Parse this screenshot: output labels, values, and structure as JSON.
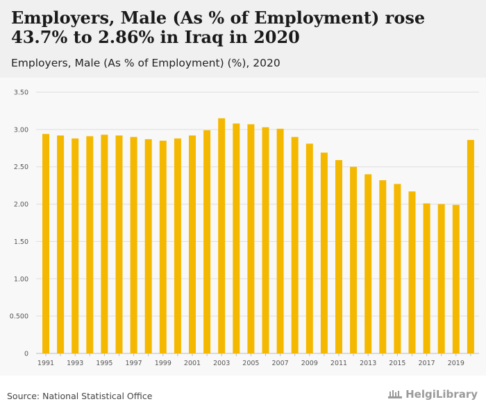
{
  "header": {
    "title": "Employers, Male (As % of Employment) rose 43.7% to 2.86% in Iraq in 2020",
    "subtitle": "Employers, Male (As % of Employment) (%), 2020"
  },
  "footer": {
    "source": "Source: National Statistical Office",
    "brand": "HelgiLibrary"
  },
  "colors": {
    "bar": "#f5b800",
    "grid": "#dddddd",
    "axis_text": "#555555"
  },
  "chart_data": {
    "type": "bar",
    "title": "Employers, Male (As % of Employment) (%), 2020",
    "xlabel": "",
    "ylabel": "",
    "ylim": [
      0,
      3.5
    ],
    "yticks": [
      0,
      0.5,
      1.0,
      1.5,
      2.0,
      2.5,
      3.0,
      3.5
    ],
    "ytick_labels": [
      "0",
      "0.500",
      "1.00",
      "1.50",
      "2.00",
      "2.50",
      "3.00",
      "3.50"
    ],
    "grid": true,
    "categories": [
      "1991",
      "1992",
      "1993",
      "1994",
      "1995",
      "1996",
      "1997",
      "1998",
      "1999",
      "2000",
      "2001",
      "2002",
      "2003",
      "2004",
      "2005",
      "2006",
      "2007",
      "2008",
      "2009",
      "2010",
      "2011",
      "2012",
      "2013",
      "2014",
      "2015",
      "2016",
      "2017",
      "2018",
      "2019",
      "2020"
    ],
    "xtick_labels": [
      "1991",
      "1993",
      "1995",
      "1997",
      "1999",
      "2001",
      "2003",
      "2005",
      "2007",
      "2009",
      "2011",
      "2013",
      "2015",
      "2017",
      "2019"
    ],
    "values": [
      2.94,
      2.92,
      2.88,
      2.91,
      2.93,
      2.92,
      2.9,
      2.87,
      2.85,
      2.88,
      2.92,
      2.99,
      3.15,
      3.08,
      3.07,
      3.03,
      3.01,
      2.9,
      2.81,
      2.69,
      2.59,
      2.5,
      2.4,
      2.32,
      2.27,
      2.17,
      2.01,
      2.0,
      1.99,
      2.86
    ]
  }
}
